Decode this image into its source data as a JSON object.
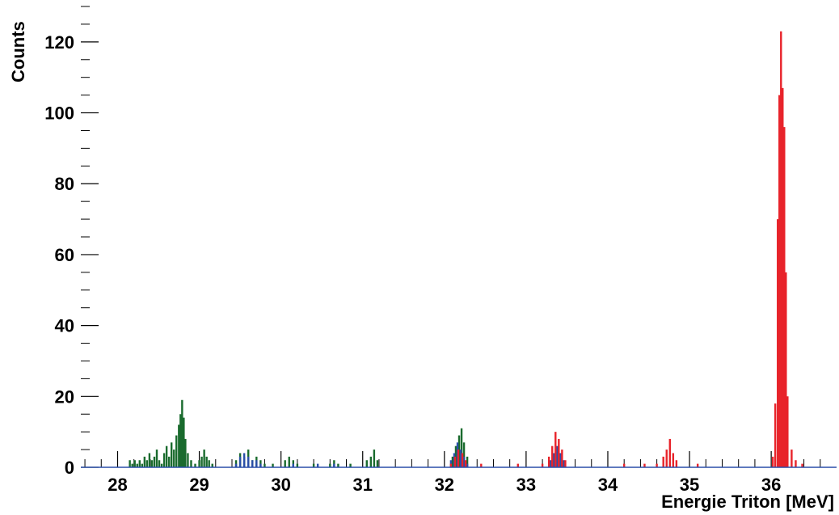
{
  "chart_data": {
    "type": "histogram",
    "xlabel": "Energie Triton [MeV]",
    "ylabel": "Counts",
    "xlim": [
      27.55,
      36.8
    ],
    "ylim": [
      0,
      130
    ],
    "x_major_ticks": [
      28,
      29,
      30,
      31,
      32,
      33,
      34,
      35,
      36
    ],
    "x_minor_ticks": [
      27.6,
      27.8,
      28.2,
      28.4,
      28.6,
      28.8,
      29.2,
      29.4,
      29.6,
      29.8,
      30.2,
      30.4,
      30.6,
      30.8,
      31.2,
      31.4,
      31.6,
      31.8,
      32.2,
      32.4,
      32.6,
      32.8,
      33.2,
      33.4,
      33.6,
      33.8,
      34.2,
      34.4,
      34.6,
      34.8,
      35.2,
      35.4,
      35.6,
      35.8,
      36.2,
      36.4,
      36.6
    ],
    "y_major_ticks": [
      0,
      20,
      40,
      60,
      80,
      100,
      120
    ],
    "y_minor_ticks": [
      5,
      10,
      15,
      25,
      30,
      35,
      45,
      50,
      55,
      65,
      70,
      75,
      85,
      90,
      95,
      105,
      110,
      115,
      125,
      130
    ],
    "grid": false,
    "legend": "none",
    "series": [
      {
        "color": "#1a6b2e",
        "bars": [
          [
            28.15,
            2
          ],
          [
            28.18,
            1
          ],
          [
            28.21,
            2
          ],
          [
            28.24,
            1
          ],
          [
            28.27,
            2
          ],
          [
            28.3,
            1
          ],
          [
            28.33,
            3
          ],
          [
            28.36,
            2
          ],
          [
            28.39,
            4
          ],
          [
            28.42,
            2
          ],
          [
            28.45,
            3
          ],
          [
            28.48,
            5
          ],
          [
            28.51,
            2
          ],
          [
            28.54,
            1
          ],
          [
            28.57,
            4
          ],
          [
            28.6,
            6
          ],
          [
            28.63,
            3
          ],
          [
            28.66,
            7
          ],
          [
            28.69,
            5
          ],
          [
            28.72,
            9
          ],
          [
            28.75,
            12
          ],
          [
            28.77,
            15
          ],
          [
            28.79,
            19
          ],
          [
            28.81,
            14
          ],
          [
            28.83,
            8
          ],
          [
            28.86,
            4
          ],
          [
            28.9,
            2
          ],
          [
            28.95,
            1
          ],
          [
            29.0,
            2
          ],
          [
            29.03,
            3
          ],
          [
            29.06,
            5
          ],
          [
            29.09,
            3
          ],
          [
            29.12,
            2
          ],
          [
            29.16,
            1
          ],
          [
            29.45,
            2
          ],
          [
            29.5,
            4
          ],
          [
            29.55,
            3
          ],
          [
            29.6,
            5
          ],
          [
            29.65,
            2
          ],
          [
            29.7,
            3
          ],
          [
            29.75,
            2
          ],
          [
            29.8,
            1
          ],
          [
            29.9,
            1
          ],
          [
            30.05,
            2
          ],
          [
            30.1,
            3
          ],
          [
            30.15,
            2
          ],
          [
            30.2,
            1
          ],
          [
            30.4,
            1
          ],
          [
            30.6,
            1
          ],
          [
            30.65,
            2
          ],
          [
            30.7,
            1
          ],
          [
            30.85,
            1
          ],
          [
            31.05,
            2
          ],
          [
            31.1,
            3
          ],
          [
            31.14,
            5
          ],
          [
            31.18,
            2
          ],
          [
            32.1,
            3
          ],
          [
            32.14,
            6
          ],
          [
            32.18,
            9
          ],
          [
            32.21,
            11
          ],
          [
            32.24,
            7
          ],
          [
            32.28,
            3
          ]
        ]
      },
      {
        "color": "#2a4fa8",
        "bars": [
          [
            29.45,
            1
          ],
          [
            29.5,
            3
          ],
          [
            29.55,
            4
          ],
          [
            29.6,
            3
          ],
          [
            29.65,
            2
          ],
          [
            29.7,
            2
          ],
          [
            29.75,
            1
          ],
          [
            30.15,
            1
          ],
          [
            30.45,
            1
          ],
          [
            30.65,
            1
          ],
          [
            32.08,
            2
          ],
          [
            32.12,
            4
          ],
          [
            32.16,
            7
          ],
          [
            32.2,
            5
          ],
          [
            32.24,
            3
          ],
          [
            32.28,
            1
          ],
          [
            33.3,
            2
          ],
          [
            33.34,
            4
          ],
          [
            33.38,
            6
          ],
          [
            33.42,
            4
          ],
          [
            33.46,
            2
          ]
        ]
      },
      {
        "color": "#e8232a",
        "bars": [
          [
            32.08,
            1
          ],
          [
            32.13,
            3
          ],
          [
            32.17,
            5
          ],
          [
            32.22,
            4
          ],
          [
            32.26,
            2
          ],
          [
            32.45,
            1
          ],
          [
            32.9,
            1
          ],
          [
            33.2,
            1
          ],
          [
            33.28,
            3
          ],
          [
            33.32,
            6
          ],
          [
            33.36,
            10
          ],
          [
            33.4,
            8
          ],
          [
            33.44,
            5
          ],
          [
            33.48,
            2
          ],
          [
            34.2,
            1
          ],
          [
            34.45,
            1
          ],
          [
            34.6,
            1
          ],
          [
            34.68,
            3
          ],
          [
            34.72,
            5
          ],
          [
            34.76,
            8
          ],
          [
            34.8,
            4
          ],
          [
            34.84,
            2
          ],
          [
            35.1,
            1
          ],
          [
            36.02,
            3
          ],
          [
            36.05,
            18
          ],
          [
            36.08,
            70
          ],
          [
            36.1,
            105
          ],
          [
            36.12,
            123
          ],
          [
            36.14,
            107
          ],
          [
            36.16,
            96
          ],
          [
            36.18,
            55
          ],
          [
            36.2,
            20
          ],
          [
            36.25,
            5
          ],
          [
            36.3,
            2
          ],
          [
            36.38,
            1
          ]
        ]
      }
    ]
  }
}
